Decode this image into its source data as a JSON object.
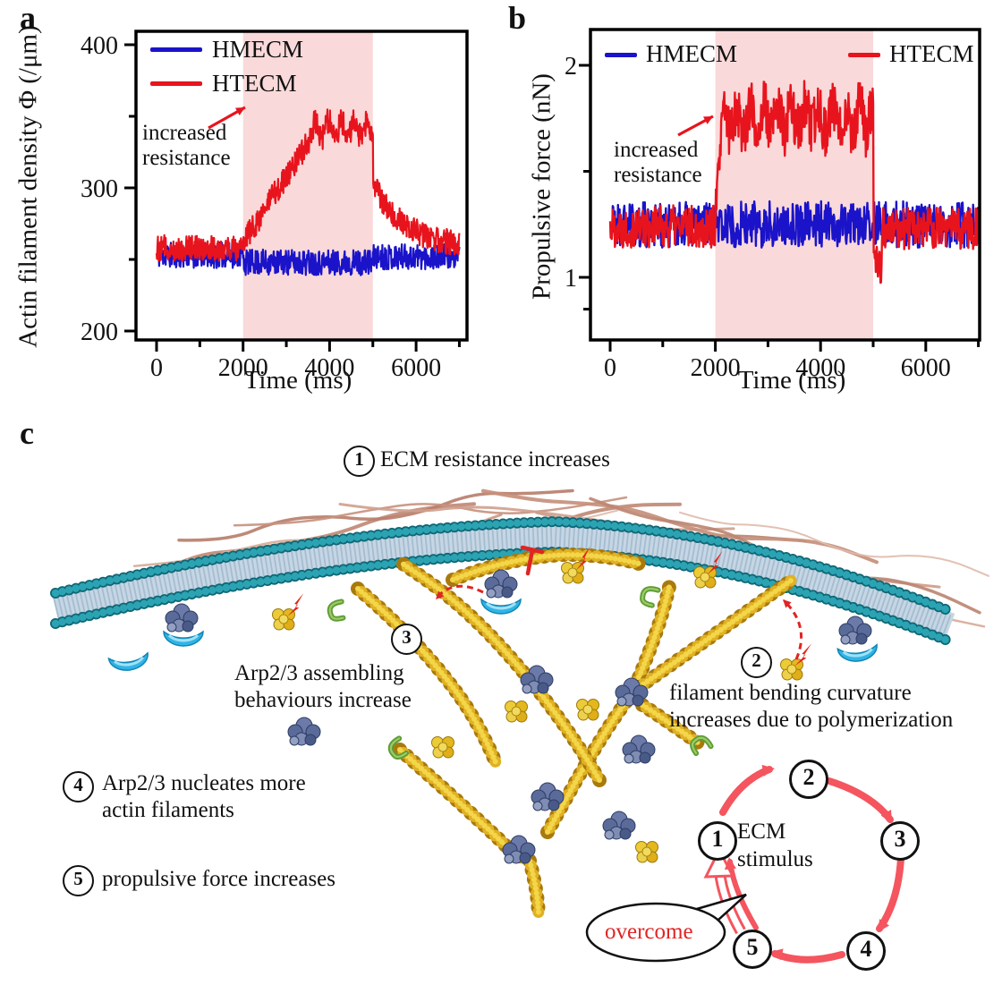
{
  "figure": {
    "panels": {
      "a": "a",
      "b": "b",
      "c": "c"
    }
  },
  "chart_data": [
    {
      "id": "a",
      "type": "line",
      "title": "",
      "xlabel": "Time (ms)",
      "ylabel": "Actin filament density Φ (/μm)",
      "xlim": [
        -620,
        7180
      ],
      "ylim": [
        194,
        409
      ],
      "x_max": 7000,
      "sampling_ms": 10,
      "xticks": [
        0,
        2000,
        4000,
        6000
      ],
      "minor_xticks": [
        1000,
        3000,
        5000,
        7000
      ],
      "yticks": [
        200,
        300,
        400
      ],
      "minor_yticks": [
        250,
        350
      ],
      "grid": false,
      "legend_position": "top-left-inside",
      "shaded_region": {
        "x0": 2000,
        "x1": 5000,
        "color": "#f9d9da"
      },
      "annotation": {
        "lines": [
          "increased",
          "resistance"
        ],
        "arrow_color": "#e8141d"
      },
      "series": [
        {
          "name": "HMECM",
          "color": "#1a13c9",
          "noise": 9,
          "seed": 11,
          "segments": [
            {
              "t0": 0,
              "t1": 2000,
              "mean": 253
            },
            {
              "t0": 2000,
              "t1": 5000,
              "mean": 248
            },
            {
              "t0": 5000,
              "t1": 7000,
              "mean": 252
            }
          ]
        },
        {
          "name": "HTECM",
          "color": "#e8141d",
          "noise": 9,
          "seed": 12,
          "segments": [
            {
              "t0": 0,
              "t1": 2000,
              "mean": 258
            },
            {
              "t0": 2000,
              "t1": 3600,
              "shape": "ramp",
              "from": 262,
              "to": 336
            },
            {
              "t0": 3600,
              "t1": 5000,
              "mean": 341,
              "noise": 9,
              "wobble_amp": 6,
              "wobble_period": 300
            },
            {
              "t0": 5000,
              "t1": 7000,
              "shape": "decay",
              "from": 302,
              "to": 257,
              "tau": 800
            }
          ]
        }
      ]
    },
    {
      "id": "b",
      "type": "line",
      "title": "",
      "xlabel": "Time (ms)",
      "ylabel": "Propulsive force (nN)",
      "xlim": [
        -370,
        7020
      ],
      "ylim": [
        0.7,
        2.17
      ],
      "x_max": 7000,
      "sampling_ms": 10,
      "xticks": [
        0,
        2000,
        4000,
        6000
      ],
      "minor_xticks": [
        1000,
        3000,
        5000,
        7000
      ],
      "yticks": [
        1,
        2
      ],
      "minor_yticks": [
        1.5,
        0.85
      ],
      "grid": false,
      "legend_position": "top-inside",
      "shaded_region": {
        "x0": 2000,
        "x1": 5000,
        "color": "#f9d9da"
      },
      "annotation": {
        "lines": [
          "increased",
          "resistance"
        ],
        "arrow_color": "#e8141d"
      },
      "series": [
        {
          "name": "HMECM",
          "color": "#1a13c9",
          "noise": 0.11,
          "seed": 21,
          "segments": [
            {
              "t0": 0,
              "t1": 7000,
              "mean": 1.25
            }
          ]
        },
        {
          "name": "HTECM",
          "color": "#e8141d",
          "noise": 0.1,
          "seed": 22,
          "segments": [
            {
              "t0": 0,
              "t1": 2000,
              "mean": 1.24
            },
            {
              "t0": 2000,
              "t1": 2150,
              "shape": "ramp",
              "from": 1.3,
              "to": 1.78
            },
            {
              "t0": 2150,
              "t1": 5000,
              "mean": 1.75,
              "noise": 0.13,
              "wobble_amp": 0.06,
              "wobble_period": 260
            },
            {
              "t0": 5000,
              "t1": 5160,
              "mean": 1.06,
              "noise": 0.09
            },
            {
              "t0": 5160,
              "t1": 7000,
              "mean": 1.23
            }
          ]
        }
      ]
    }
  ],
  "diagram": {
    "steps": [
      {
        "num": "1",
        "lines": [
          "ECM resistance increases"
        ]
      },
      {
        "num": "2",
        "lines": [
          "filament bending curvature",
          "increases due to polymerization"
        ]
      },
      {
        "num": "3",
        "lines": [
          "Arp2/3 assembling",
          "behaviours increase"
        ]
      },
      {
        "num": "4",
        "lines": [
          "Arp2/3 nucleates more",
          "actin filaments"
        ]
      },
      {
        "num": "5",
        "lines": [
          "propulsive force increases"
        ]
      }
    ],
    "cycle": {
      "numbers": [
        "1",
        "2",
        "3",
        "4",
        "5"
      ],
      "hub_lines": [
        "ECM",
        "stimulus"
      ],
      "bubble": "overcome",
      "arrow_color": "#f4555e"
    },
    "colors": {
      "membrane_bead": "#1b8494",
      "membrane_body": "#c6d6e4",
      "actin_filament": "#e0b122",
      "arp23_complex": "#5a6b9a",
      "ecm_fiber": "#c08a76",
      "capping_crescent": "#30b4e6",
      "end_cap": "#5f9c34",
      "stimulus_bolt": "#e52518",
      "inhibit_symbol": "#e02424"
    }
  }
}
